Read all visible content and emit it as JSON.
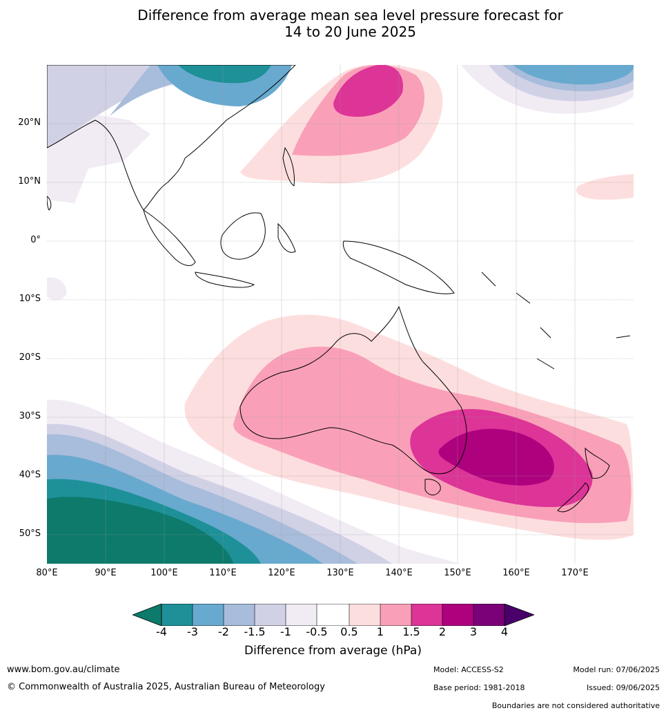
{
  "title": {
    "line1": "Difference from average mean sea level pressure forecast for",
    "line2": "14 to 20 June 2025"
  },
  "map": {
    "lat_labels": [
      "20°N",
      "10°N",
      "0°",
      "10°S",
      "20°S",
      "30°S",
      "40°S",
      "50°S"
    ],
    "lon_labels": [
      "80°E",
      "90°E",
      "100°E",
      "110°E",
      "120°E",
      "130°E",
      "140°E",
      "150°E",
      "160°E",
      "170°E"
    ],
    "extent": {
      "lon": [
        80,
        180
      ],
      "lat": [
        -55,
        30
      ]
    }
  },
  "colorbar": {
    "title": "Difference from average (hPa)",
    "ticks": [
      "-4",
      "-3",
      "-2",
      "-1.5",
      "-1",
      "-0.5",
      "0.5",
      "1",
      "1.5",
      "2",
      "3",
      "4"
    ],
    "colors": [
      "#0d7a6b",
      "#1e9098",
      "#68a9cf",
      "#a8bcdb",
      "#d1d1e6",
      "#f1ebf4",
      "#ffffff",
      "#fddede",
      "#f9a0b8",
      "#dd3497",
      "#ae017e",
      "#7a0177",
      "#49006a"
    ]
  },
  "footer": {
    "website": "www.bom.gov.au/climate",
    "copyright": "© Commonwealth of Australia 2025, Australian Bureau of Meteorology",
    "model": "Model: ACCESS-S2",
    "base_period": "Base period: 1981-2018",
    "model_run": "Model run: 07/06/2025",
    "issued": "Issued: 09/06/2025",
    "disclaimer": "Boundaries are not considered authoritative"
  }
}
